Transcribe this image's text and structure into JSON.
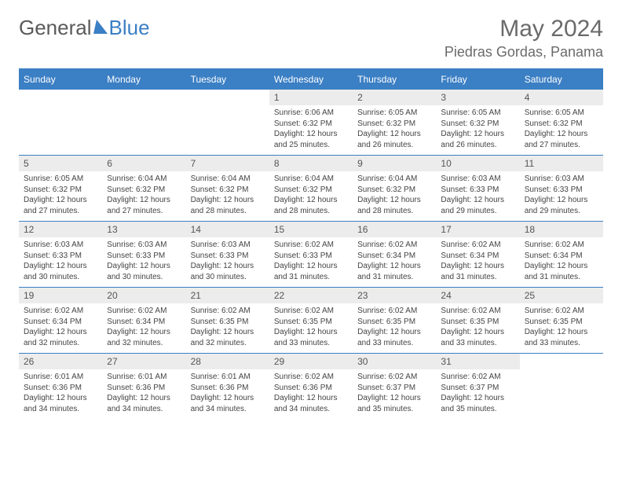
{
  "brand": {
    "part1": "General",
    "part2": "Blue"
  },
  "title": {
    "month_year": "May 2024",
    "location": "Piedras Gordas, Panama"
  },
  "colors": {
    "accent": "#3b7fc4",
    "daybar_bg": "#ececec",
    "text": "#333333",
    "muted": "#6a6a6a",
    "background": "#ffffff"
  },
  "typography": {
    "title_fontsize": 30,
    "location_fontsize": 18,
    "weekday_fontsize": 12,
    "daynum_fontsize": 12,
    "body_fontsize": 10
  },
  "weekdays": [
    "Sunday",
    "Monday",
    "Tuesday",
    "Wednesday",
    "Thursday",
    "Friday",
    "Saturday"
  ],
  "calendar": {
    "type": "table",
    "first_weekday_index": 3,
    "days_in_month": 31,
    "rows": 5,
    "cols": 7,
    "days": {
      "1": {
        "sunrise": "6:06 AM",
        "sunset": "6:32 PM",
        "daylight": "12 hours and 25 minutes."
      },
      "2": {
        "sunrise": "6:05 AM",
        "sunset": "6:32 PM",
        "daylight": "12 hours and 26 minutes."
      },
      "3": {
        "sunrise": "6:05 AM",
        "sunset": "6:32 PM",
        "daylight": "12 hours and 26 minutes."
      },
      "4": {
        "sunrise": "6:05 AM",
        "sunset": "6:32 PM",
        "daylight": "12 hours and 27 minutes."
      },
      "5": {
        "sunrise": "6:05 AM",
        "sunset": "6:32 PM",
        "daylight": "12 hours and 27 minutes."
      },
      "6": {
        "sunrise": "6:04 AM",
        "sunset": "6:32 PM",
        "daylight": "12 hours and 27 minutes."
      },
      "7": {
        "sunrise": "6:04 AM",
        "sunset": "6:32 PM",
        "daylight": "12 hours and 28 minutes."
      },
      "8": {
        "sunrise": "6:04 AM",
        "sunset": "6:32 PM",
        "daylight": "12 hours and 28 minutes."
      },
      "9": {
        "sunrise": "6:04 AM",
        "sunset": "6:32 PM",
        "daylight": "12 hours and 28 minutes."
      },
      "10": {
        "sunrise": "6:03 AM",
        "sunset": "6:33 PM",
        "daylight": "12 hours and 29 minutes."
      },
      "11": {
        "sunrise": "6:03 AM",
        "sunset": "6:33 PM",
        "daylight": "12 hours and 29 minutes."
      },
      "12": {
        "sunrise": "6:03 AM",
        "sunset": "6:33 PM",
        "daylight": "12 hours and 30 minutes."
      },
      "13": {
        "sunrise": "6:03 AM",
        "sunset": "6:33 PM",
        "daylight": "12 hours and 30 minutes."
      },
      "14": {
        "sunrise": "6:03 AM",
        "sunset": "6:33 PM",
        "daylight": "12 hours and 30 minutes."
      },
      "15": {
        "sunrise": "6:02 AM",
        "sunset": "6:33 PM",
        "daylight": "12 hours and 31 minutes."
      },
      "16": {
        "sunrise": "6:02 AM",
        "sunset": "6:34 PM",
        "daylight": "12 hours and 31 minutes."
      },
      "17": {
        "sunrise": "6:02 AM",
        "sunset": "6:34 PM",
        "daylight": "12 hours and 31 minutes."
      },
      "18": {
        "sunrise": "6:02 AM",
        "sunset": "6:34 PM",
        "daylight": "12 hours and 31 minutes."
      },
      "19": {
        "sunrise": "6:02 AM",
        "sunset": "6:34 PM",
        "daylight": "12 hours and 32 minutes."
      },
      "20": {
        "sunrise": "6:02 AM",
        "sunset": "6:34 PM",
        "daylight": "12 hours and 32 minutes."
      },
      "21": {
        "sunrise": "6:02 AM",
        "sunset": "6:35 PM",
        "daylight": "12 hours and 32 minutes."
      },
      "22": {
        "sunrise": "6:02 AM",
        "sunset": "6:35 PM",
        "daylight": "12 hours and 33 minutes."
      },
      "23": {
        "sunrise": "6:02 AM",
        "sunset": "6:35 PM",
        "daylight": "12 hours and 33 minutes."
      },
      "24": {
        "sunrise": "6:02 AM",
        "sunset": "6:35 PM",
        "daylight": "12 hours and 33 minutes."
      },
      "25": {
        "sunrise": "6:02 AM",
        "sunset": "6:35 PM",
        "daylight": "12 hours and 33 minutes."
      },
      "26": {
        "sunrise": "6:01 AM",
        "sunset": "6:36 PM",
        "daylight": "12 hours and 34 minutes."
      },
      "27": {
        "sunrise": "6:01 AM",
        "sunset": "6:36 PM",
        "daylight": "12 hours and 34 minutes."
      },
      "28": {
        "sunrise": "6:01 AM",
        "sunset": "6:36 PM",
        "daylight": "12 hours and 34 minutes."
      },
      "29": {
        "sunrise": "6:02 AM",
        "sunset": "6:36 PM",
        "daylight": "12 hours and 34 minutes."
      },
      "30": {
        "sunrise": "6:02 AM",
        "sunset": "6:37 PM",
        "daylight": "12 hours and 35 minutes."
      },
      "31": {
        "sunrise": "6:02 AM",
        "sunset": "6:37 PM",
        "daylight": "12 hours and 35 minutes."
      }
    },
    "labels": {
      "sunrise_prefix": "Sunrise: ",
      "sunset_prefix": "Sunset: ",
      "daylight_prefix": "Daylight: "
    }
  }
}
